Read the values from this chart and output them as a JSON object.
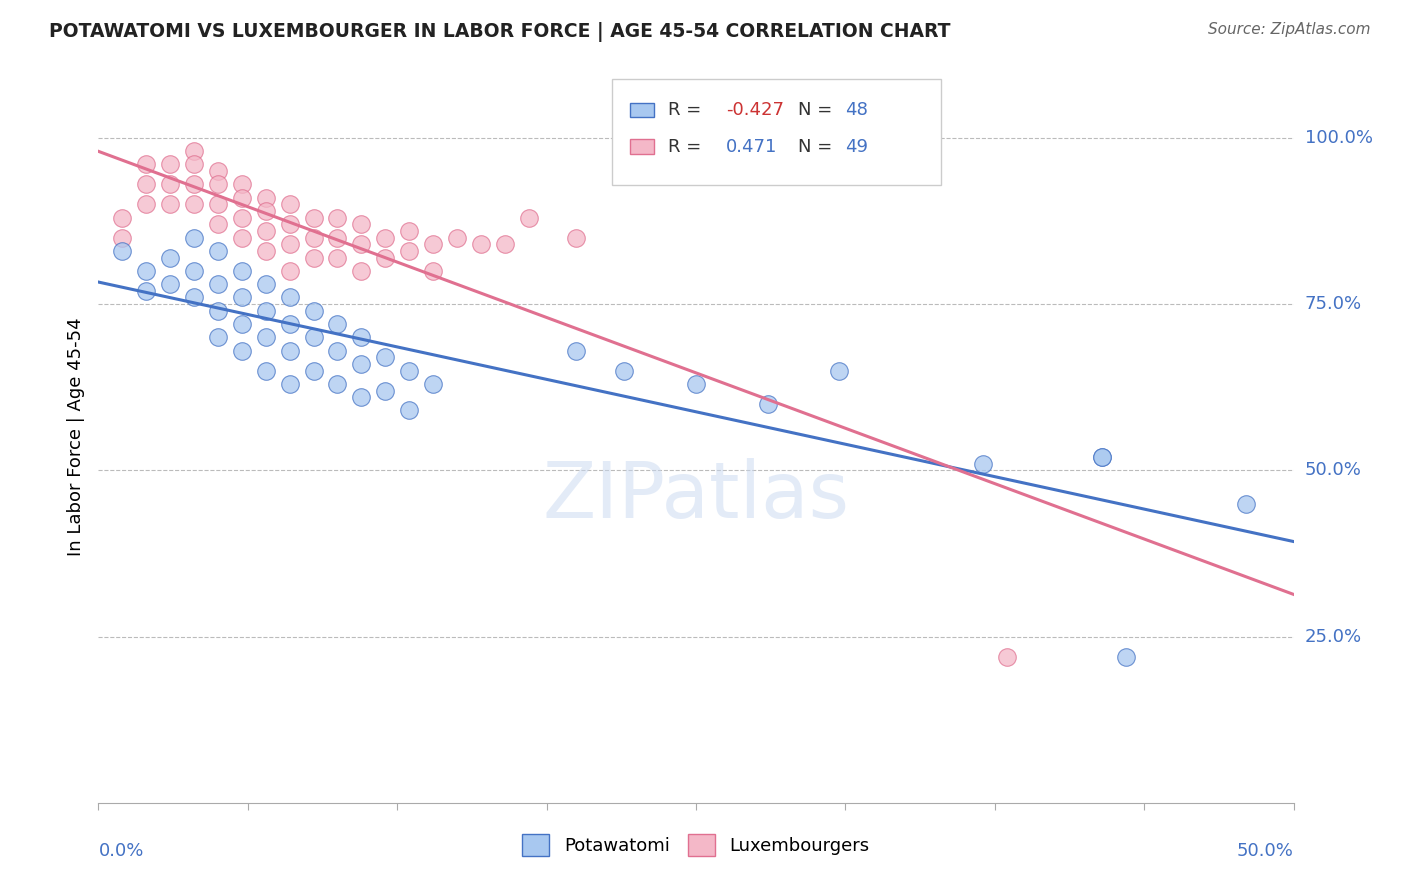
{
  "title": "POTAWATOMI VS LUXEMBOURGER IN LABOR FORCE | AGE 45-54 CORRELATION CHART",
  "source": "Source: ZipAtlas.com",
  "ylabel": "In Labor Force | Age 45-54",
  "y_tick_labels": [
    "100.0%",
    "75.0%",
    "50.0%",
    "25.0%"
  ],
  "y_tick_values": [
    1.0,
    0.75,
    0.5,
    0.25
  ],
  "xlim": [
    0.0,
    0.5
  ],
  "ylim": [
    0.0,
    1.1
  ],
  "legend_R_blue": "-0.427",
  "legend_N_blue": "48",
  "legend_R_pink": "0.471",
  "legend_N_pink": "49",
  "blue_color": "#a8c8f0",
  "pink_color": "#f4b8c8",
  "blue_line_color": "#4472c4",
  "pink_line_color": "#e07090",
  "watermark": "ZIPatlas",
  "potawatomi_x": [
    0.01,
    0.02,
    0.02,
    0.03,
    0.03,
    0.04,
    0.04,
    0.04,
    0.05,
    0.05,
    0.05,
    0.05,
    0.06,
    0.06,
    0.06,
    0.06,
    0.07,
    0.07,
    0.07,
    0.07,
    0.08,
    0.08,
    0.08,
    0.08,
    0.09,
    0.09,
    0.09,
    0.1,
    0.1,
    0.1,
    0.11,
    0.11,
    0.11,
    0.12,
    0.12,
    0.13,
    0.13,
    0.14,
    0.2,
    0.22,
    0.25,
    0.28,
    0.31,
    0.37,
    0.42,
    0.42,
    0.43,
    0.48
  ],
  "potawatomi_y": [
    0.83,
    0.8,
    0.77,
    0.82,
    0.78,
    0.85,
    0.8,
    0.76,
    0.83,
    0.78,
    0.74,
    0.7,
    0.8,
    0.76,
    0.72,
    0.68,
    0.78,
    0.74,
    0.7,
    0.65,
    0.76,
    0.72,
    0.68,
    0.63,
    0.74,
    0.7,
    0.65,
    0.72,
    0.68,
    0.63,
    0.7,
    0.66,
    0.61,
    0.67,
    0.62,
    0.65,
    0.59,
    0.63,
    0.68,
    0.65,
    0.63,
    0.6,
    0.65,
    0.51,
    0.52,
    0.52,
    0.22,
    0.45
  ],
  "luxembourger_x": [
    0.01,
    0.01,
    0.02,
    0.02,
    0.02,
    0.03,
    0.03,
    0.03,
    0.04,
    0.04,
    0.04,
    0.04,
    0.05,
    0.05,
    0.05,
    0.05,
    0.06,
    0.06,
    0.06,
    0.06,
    0.07,
    0.07,
    0.07,
    0.07,
    0.08,
    0.08,
    0.08,
    0.08,
    0.09,
    0.09,
    0.09,
    0.1,
    0.1,
    0.1,
    0.11,
    0.11,
    0.11,
    0.12,
    0.12,
    0.13,
    0.13,
    0.14,
    0.14,
    0.15,
    0.16,
    0.17,
    0.18,
    0.2,
    0.38
  ],
  "luxembourger_y": [
    0.88,
    0.85,
    0.96,
    0.93,
    0.9,
    0.96,
    0.93,
    0.9,
    0.98,
    0.96,
    0.93,
    0.9,
    0.95,
    0.93,
    0.9,
    0.87,
    0.93,
    0.91,
    0.88,
    0.85,
    0.91,
    0.89,
    0.86,
    0.83,
    0.9,
    0.87,
    0.84,
    0.8,
    0.88,
    0.85,
    0.82,
    0.88,
    0.85,
    0.82,
    0.87,
    0.84,
    0.8,
    0.85,
    0.82,
    0.86,
    0.83,
    0.84,
    0.8,
    0.85,
    0.84,
    0.84,
    0.88,
    0.85,
    0.22
  ]
}
